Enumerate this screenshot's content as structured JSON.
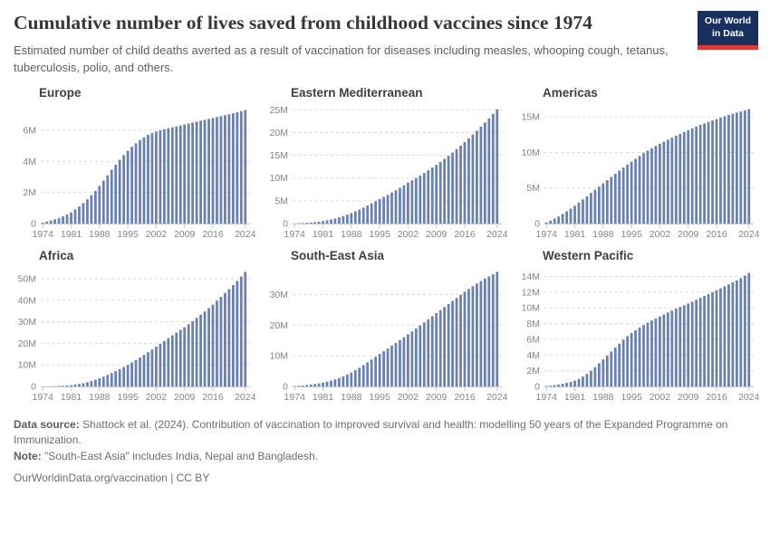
{
  "header": {
    "title": "Cumulative number of lives saved from childhood vaccines since 1974",
    "subtitle": "Estimated number of child deaths averted as a result of vaccination for diseases including measles, whooping cough, tetanus, tuberculosis, polio, and others.",
    "logo_line1": "Our World",
    "logo_line2": "in Data"
  },
  "style": {
    "bar_color": "#6880b2",
    "grid_color": "#dadada",
    "axis_color": "#c6c6c6",
    "tick_label_color": "#858585",
    "logo_bg": "#18305e",
    "logo_accent": "#dc3c34"
  },
  "footer": {
    "datasource_label": "Data source:",
    "datasource_text": "Shattock et al. (2024). Contribution of vaccination to improved survival and health: modelling 50 years of the Expanded Programme on Immunization.",
    "note_label": "Note:",
    "note_text": "\"South-East Asia\" includes India, Nepal and Bangladesh.",
    "citation": "OurWorldinData.org/vaccination | CC BY"
  },
  "chart_data": [
    {
      "type": "bar",
      "title": "Europe",
      "unit": "lives saved (millions)",
      "x_start": 1974,
      "x_end": 2024,
      "x_ticks": [
        1974,
        1981,
        1988,
        1995,
        2002,
        2009,
        2016,
        2024
      ],
      "y_ticks": [
        0,
        2,
        4,
        6
      ],
      "y_tick_labels": [
        "0",
        "2M",
        "4M",
        "6M"
      ],
      "ymax": 7.45,
      "values_millions": [
        0.06,
        0.12,
        0.19,
        0.27,
        0.36,
        0.46,
        0.58,
        0.72,
        0.9,
        1.1,
        1.32,
        1.56,
        1.82,
        2.1,
        2.42,
        2.76,
        3.1,
        3.45,
        3.78,
        4.1,
        4.4,
        4.68,
        4.94,
        5.16,
        5.36,
        5.54,
        5.7,
        5.82,
        5.92,
        6.0,
        6.07,
        6.13,
        6.19,
        6.25,
        6.31,
        6.37,
        6.43,
        6.49,
        6.55,
        6.61,
        6.67,
        6.73,
        6.79,
        6.85,
        6.91,
        6.97,
        7.03,
        7.09,
        7.16,
        7.23,
        7.3
      ]
    },
    {
      "type": "bar",
      "title": "Eastern Mediterranean",
      "unit": "lives saved (millions)",
      "x_start": 1974,
      "x_end": 2024,
      "x_ticks": [
        1974,
        1981,
        1988,
        1995,
        2002,
        2009,
        2016,
        2024
      ],
      "y_ticks": [
        0,
        5,
        10,
        15,
        20,
        25
      ],
      "y_tick_labels": [
        "0",
        "5M",
        "10M",
        "15M",
        "20M",
        "25M"
      ],
      "ymax": 25.45,
      "values_millions": [
        0.03,
        0.07,
        0.11,
        0.16,
        0.22,
        0.3,
        0.4,
        0.52,
        0.68,
        0.88,
        1.1,
        1.36,
        1.64,
        1.95,
        2.3,
        2.68,
        3.08,
        3.5,
        3.95,
        4.42,
        4.9,
        5.4,
        5.85,
        6.3,
        6.8,
        7.3,
        7.85,
        8.4,
        9.0,
        9.5,
        10.0,
        10.55,
        11.1,
        11.7,
        12.3,
        12.9,
        13.55,
        14.2,
        14.9,
        15.6,
        16.35,
        17.1,
        17.9,
        18.7,
        19.55,
        20.4,
        21.3,
        22.2,
        23.1,
        24.1,
        25.1
      ]
    },
    {
      "type": "bar",
      "title": "Americas",
      "unit": "lives saved (millions)",
      "x_start": 1974,
      "x_end": 2024,
      "x_ticks": [
        1974,
        1981,
        1988,
        1995,
        2002,
        2009,
        2016,
        2024
      ],
      "y_ticks": [
        0,
        5,
        10,
        15
      ],
      "y_tick_labels": [
        "0",
        "5M",
        "10M",
        "15M"
      ],
      "ymax": 16.3,
      "values_millions": [
        0.15,
        0.4,
        0.7,
        1.0,
        1.35,
        1.72,
        2.1,
        2.5,
        2.95,
        3.4,
        3.85,
        4.3,
        4.75,
        5.2,
        5.65,
        6.1,
        6.55,
        7.0,
        7.45,
        7.88,
        8.3,
        8.7,
        9.1,
        9.5,
        9.9,
        10.25,
        10.6,
        10.92,
        11.22,
        11.52,
        11.8,
        12.08,
        12.36,
        12.62,
        12.88,
        13.14,
        13.4,
        13.64,
        13.88,
        14.1,
        14.3,
        14.5,
        14.7,
        14.9,
        15.1,
        15.28,
        15.45,
        15.6,
        15.75,
        15.92,
        16.1
      ]
    },
    {
      "type": "bar",
      "title": "Africa",
      "unit": "lives saved (millions)",
      "x_start": 1974,
      "x_end": 2024,
      "x_ticks": [
        1974,
        1981,
        1988,
        1995,
        2002,
        2009,
        2016,
        2024
      ],
      "y_ticks": [
        0,
        10,
        20,
        30,
        40,
        50
      ],
      "y_tick_labels": [
        "0",
        "10M",
        "20M",
        "30M",
        "40M",
        "50M"
      ],
      "ymax": 53.8,
      "values_millions": [
        0.02,
        0.05,
        0.09,
        0.14,
        0.2,
        0.3,
        0.44,
        0.6,
        0.85,
        1.15,
        1.5,
        1.95,
        2.5,
        3.1,
        3.8,
        4.55,
        5.35,
        6.2,
        7.1,
        8.05,
        9.0,
        10.0,
        11.1,
        12.25,
        13.45,
        14.65,
        15.9,
        17.2,
        18.5,
        19.8,
        21.1,
        22.4,
        23.7,
        25.0,
        26.25,
        27.5,
        28.9,
        30.3,
        31.8,
        33.3,
        34.8,
        36.4,
        38.0,
        39.8,
        41.6,
        43.4,
        45.2,
        47.1,
        49.0,
        51.0,
        53.2
      ]
    },
    {
      "type": "bar",
      "title": "South-East Asia",
      "unit": "lives saved (millions)",
      "x_start": 1974,
      "x_end": 2024,
      "x_ticks": [
        1974,
        1981,
        1988,
        1995,
        2002,
        2009,
        2016,
        2024
      ],
      "y_ticks": [
        0,
        10,
        20,
        30
      ],
      "y_tick_labels": [
        "0",
        "10M",
        "20M",
        "30M"
      ],
      "ymax": 37.8,
      "values_millions": [
        0.1,
        0.2,
        0.32,
        0.46,
        0.62,
        0.8,
        1.0,
        1.25,
        1.55,
        1.9,
        2.3,
        2.75,
        3.3,
        3.9,
        4.55,
        5.3,
        6.1,
        6.95,
        7.85,
        8.75,
        9.65,
        10.6,
        11.5,
        12.4,
        13.3,
        14.2,
        15.1,
        16.05,
        17.0,
        17.95,
        18.9,
        19.9,
        20.9,
        21.9,
        22.9,
        23.9,
        24.9,
        25.9,
        26.9,
        27.9,
        28.9,
        29.9,
        30.9,
        31.8,
        32.7,
        33.6,
        34.4,
        35.2,
        35.9,
        36.6,
        37.4
      ]
    },
    {
      "type": "bar",
      "title": "Western Pacific",
      "unit": "lives saved (millions)",
      "x_start": 1974,
      "x_end": 2024,
      "x_ticks": [
        1974,
        1981,
        1988,
        1995,
        2002,
        2009,
        2016,
        2024
      ],
      "y_ticks": [
        0,
        2,
        4,
        6,
        8,
        10,
        12,
        14
      ],
      "y_tick_labels": [
        "0",
        "2M",
        "4M",
        "6M",
        "8M",
        "10M",
        "12M",
        "14M"
      ],
      "ymax": 14.75,
      "values_millions": [
        0.05,
        0.1,
        0.17,
        0.25,
        0.34,
        0.45,
        0.58,
        0.74,
        0.95,
        1.25,
        1.6,
        2.0,
        2.45,
        2.95,
        3.45,
        3.95,
        4.45,
        4.95,
        5.45,
        5.95,
        6.4,
        6.8,
        7.15,
        7.5,
        7.82,
        8.12,
        8.4,
        8.66,
        8.92,
        9.17,
        9.42,
        9.66,
        9.9,
        10.12,
        10.34,
        10.56,
        10.8,
        11.04,
        11.28,
        11.52,
        11.76,
        12.0,
        12.25,
        12.5,
        12.75,
        13.0,
        13.25,
        13.5,
        13.8,
        14.1,
        14.45
      ]
    }
  ]
}
